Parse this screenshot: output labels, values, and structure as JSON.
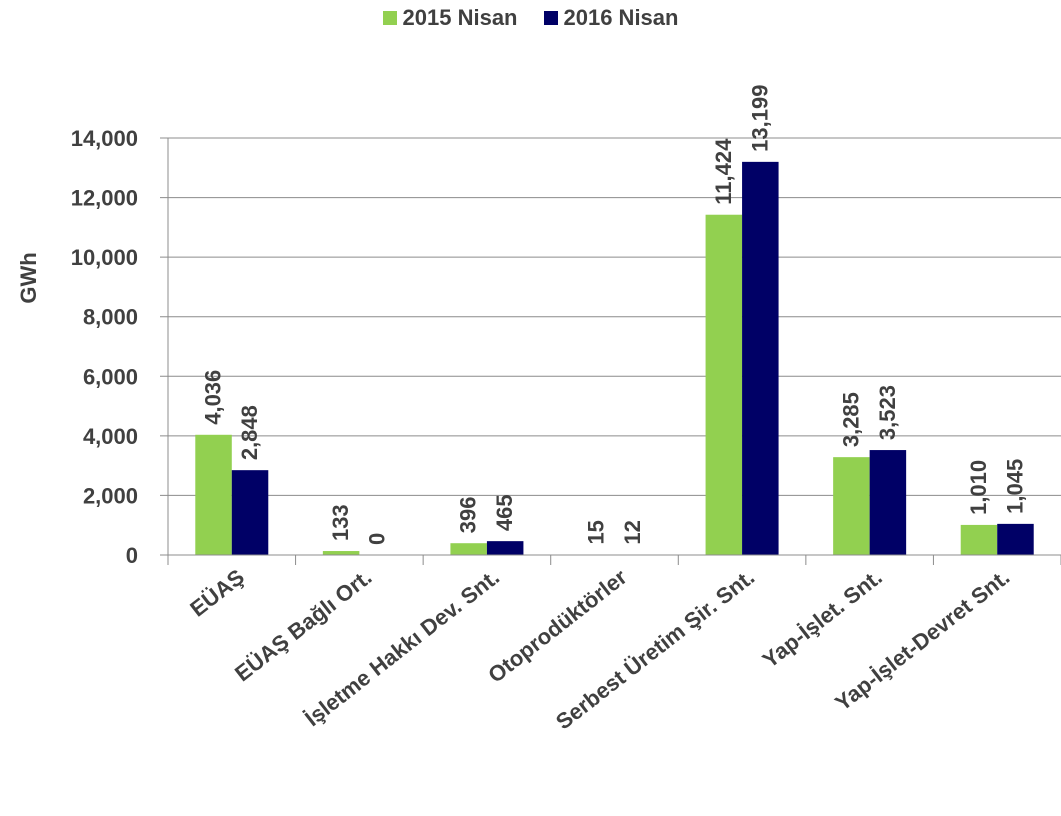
{
  "chart_data": {
    "type": "bar",
    "title": "",
    "xlabel": "",
    "ylabel": "GWh",
    "ylim": [
      0,
      14000
    ],
    "yticks": [
      "0",
      "2,000",
      "4,000",
      "6,000",
      "8,000",
      "10,000",
      "12,000",
      "14,000"
    ],
    "categories": [
      "EÜAŞ",
      "EÜAŞ Bağlı Ort.",
      "İşletme Hakkı Dev. Snt.",
      "Otoprodüktörler",
      "Serbest Üretim Şir. Snt.",
      "Yap-İşlet. Snt.",
      "Yap-İşlet-Devret Snt."
    ],
    "series": [
      {
        "name": "2015 Nisan",
        "color": "#92D050",
        "values": [
          4036,
          133,
          396,
          15,
          11424,
          3285,
          1010
        ],
        "labels": [
          "4,036",
          "133",
          "396",
          "15",
          "11,424",
          "3,285",
          "1,010"
        ]
      },
      {
        "name": "2016 Nisan",
        "color": "#000066",
        "values": [
          2848,
          0,
          465,
          12,
          13199,
          3523,
          1045
        ],
        "labels": [
          "2,848",
          "0",
          "465",
          "12",
          "13,199",
          "3,523",
          "1,045"
        ]
      }
    ],
    "grid": true,
    "legend_position": "top"
  }
}
